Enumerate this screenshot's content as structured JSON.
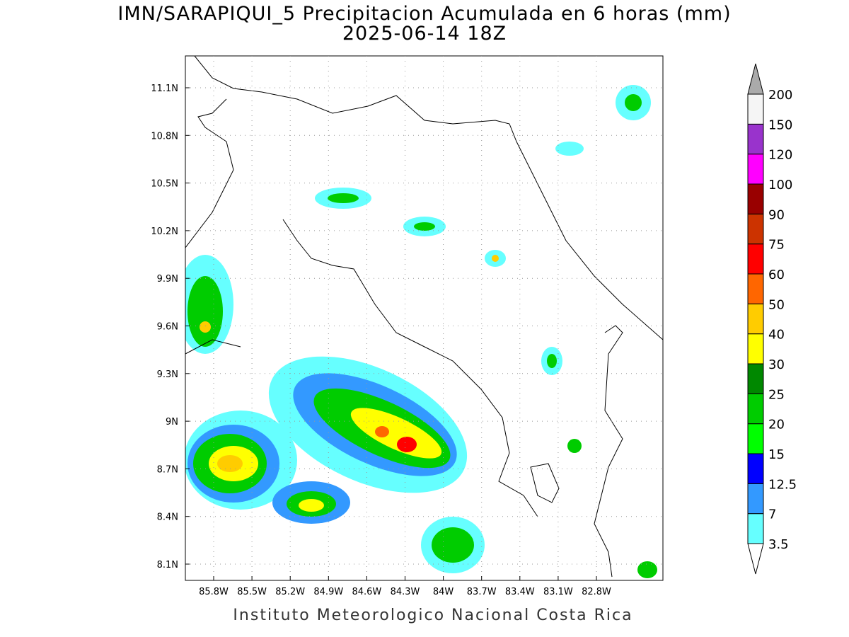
{
  "title": "IMN/SARAPIQUI_5 Precipitacion Acumulada en 6 horas (mm)",
  "subtitle": "2025-06-14 18Z",
  "map": {
    "lon_ticks": [
      "85.8W",
      "85.5W",
      "85.2W",
      "84.9W",
      "84.6W",
      "84.3W",
      "84W",
      "83.7W",
      "83.4W",
      "83.1W",
      "82.8W"
    ],
    "lat_ticks": [
      "11.1N",
      "10.8N",
      "10.5N",
      "10.2N",
      "9.9N",
      "9.6N",
      "9.3N",
      "9N",
      "8.7N",
      "8.4N",
      "8.1N"
    ]
  },
  "legend": {
    "levels": [
      3.5,
      7,
      12.5,
      15,
      20,
      25,
      30,
      40,
      50,
      60,
      75,
      90,
      100,
      120,
      150,
      200
    ],
    "colors": [
      "#66ffff",
      "#3399ff",
      "#0000ff",
      "#00ff00",
      "#00cc00",
      "#008800",
      "#ffff00",
      "#ffcc00",
      "#ff6600",
      "#ff0000",
      "#cc3300",
      "#990000",
      "#ff00ff",
      "#9933cc",
      "#f5f5f5"
    ],
    "over_color": "#aaaaaa",
    "under_color": "#ffffff"
  },
  "footer": "Instituto Meteorologico Nacional Costa Rica"
}
